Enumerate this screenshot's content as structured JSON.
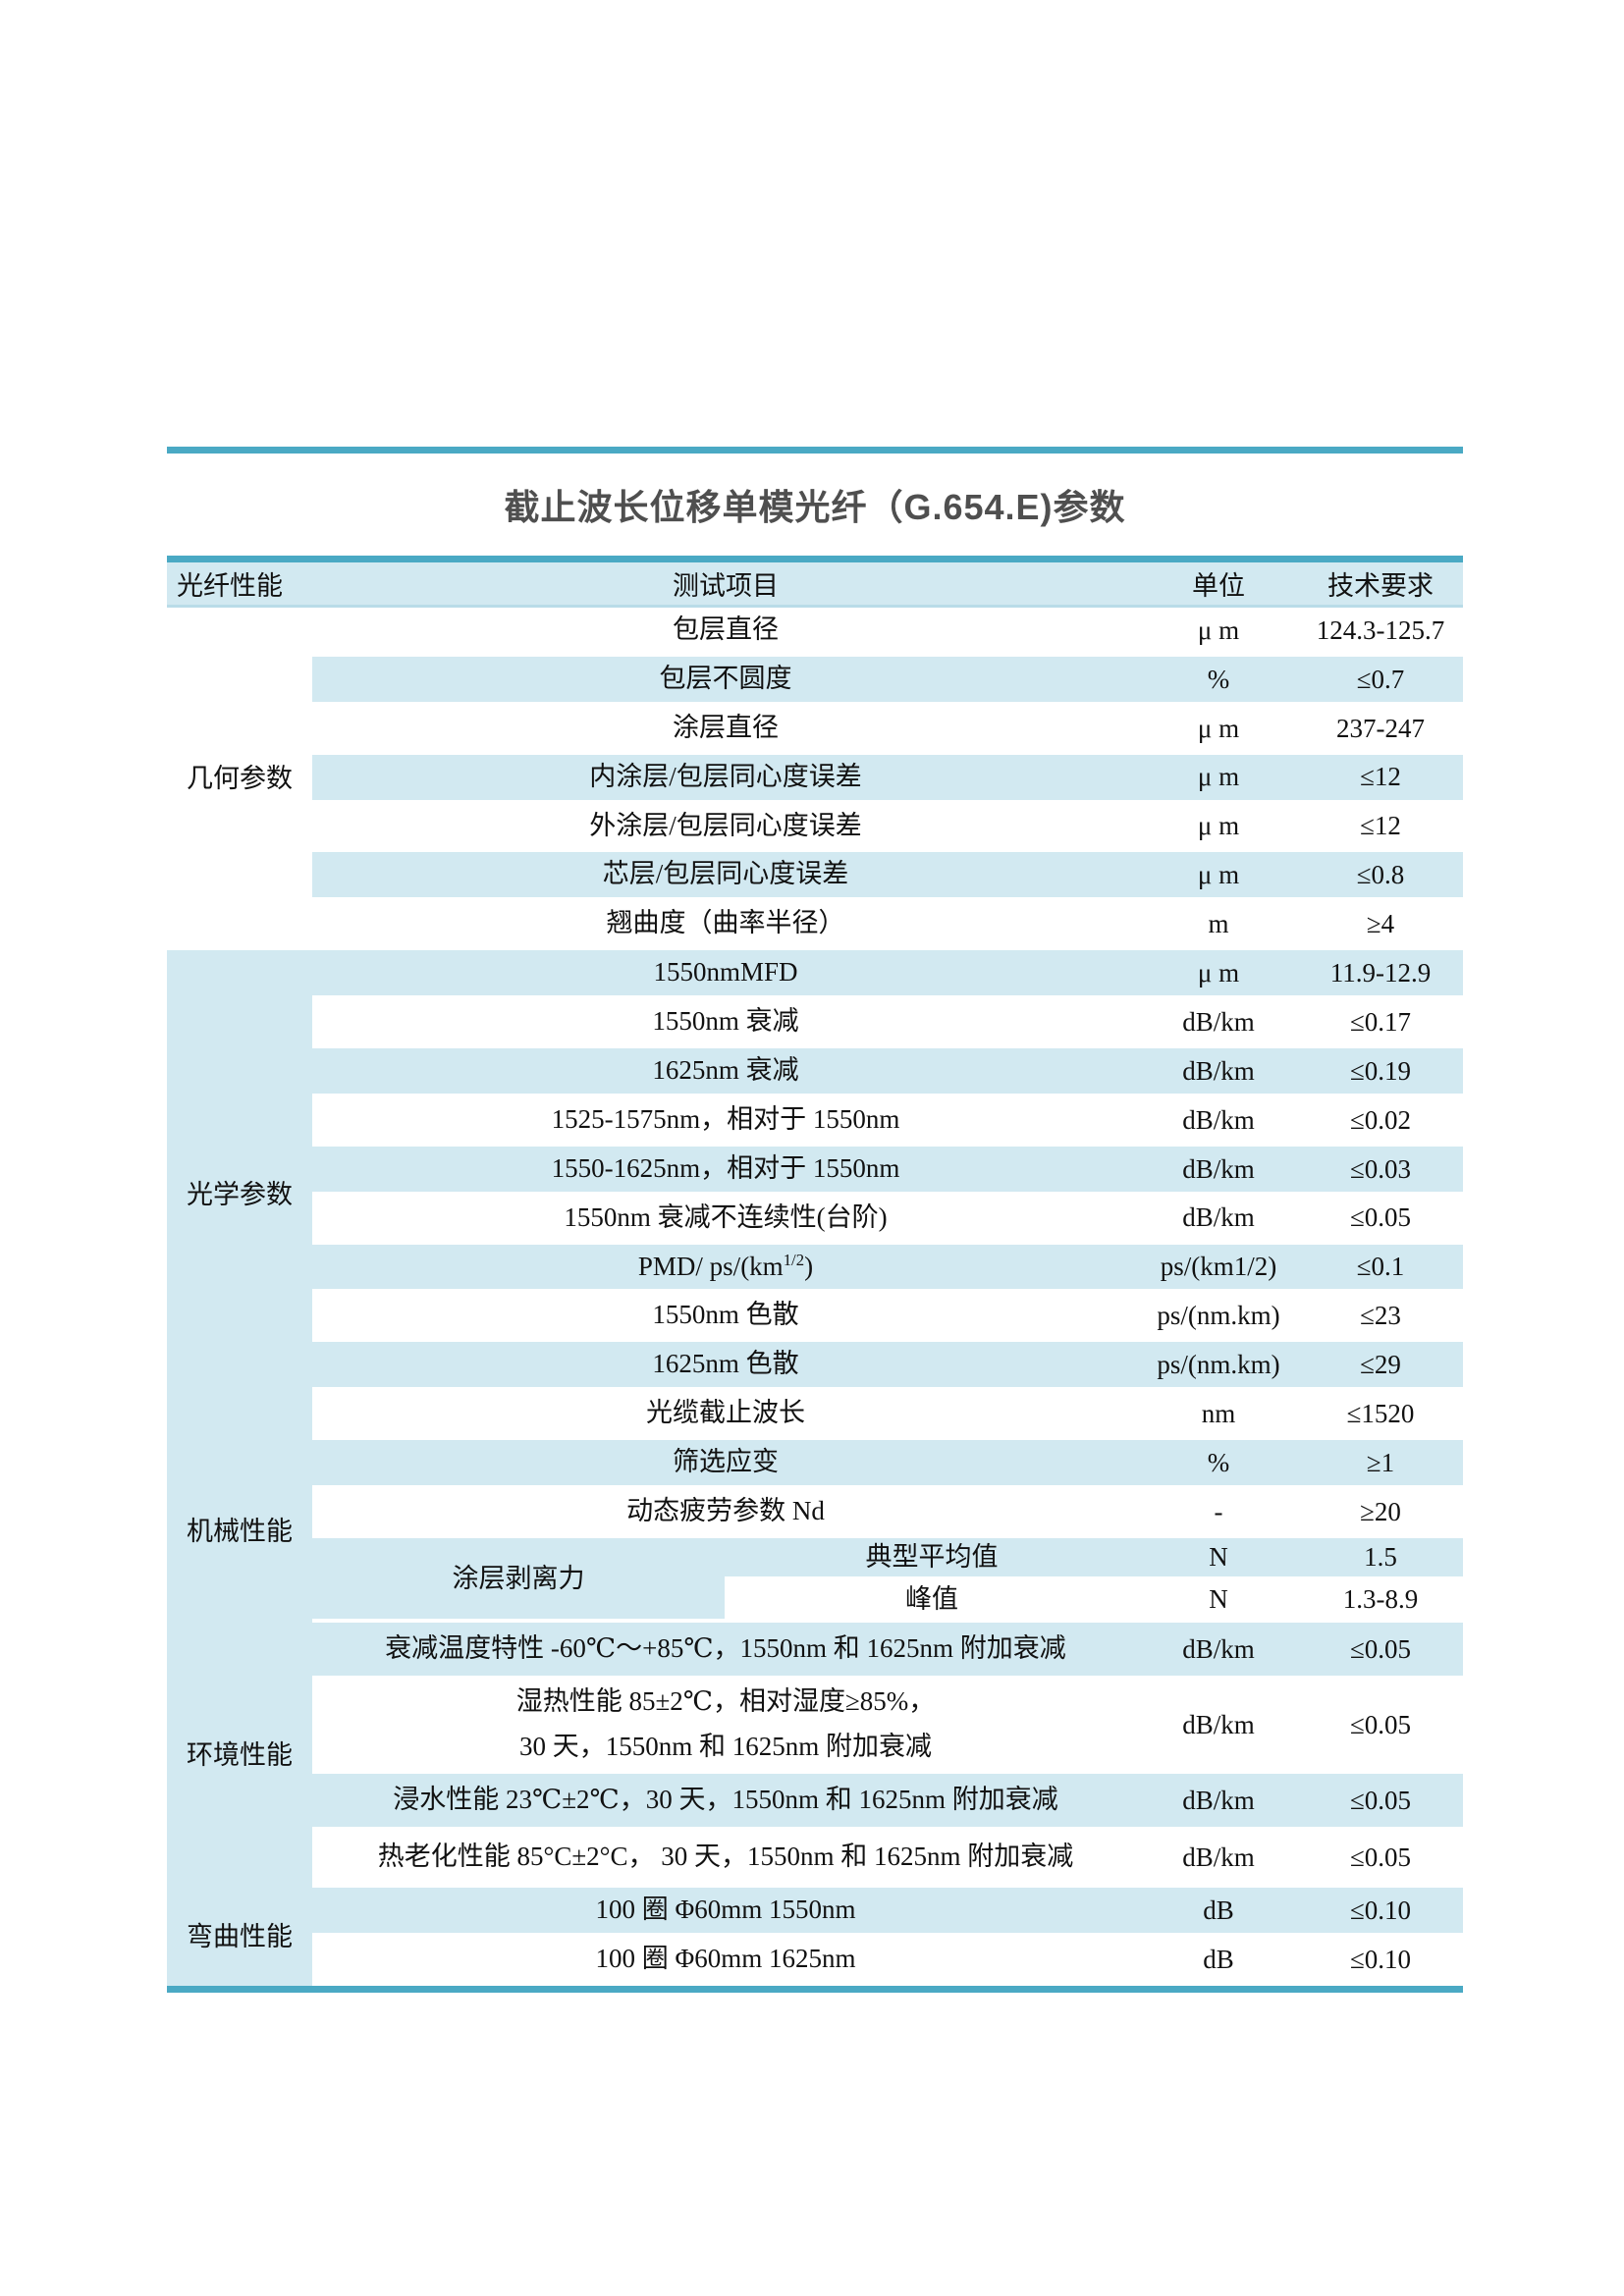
{
  "page": {
    "title": "截止波长位移单模光纤（G.654.E)参数"
  },
  "colors": {
    "accent_teal": "#4aa9c4",
    "row_blue": "#d2e9f1",
    "header_underline": "#b9dce8",
    "title_gray": "#4f4f4f"
  },
  "table": {
    "headers": {
      "category": "光纤性能",
      "item": "测试项目",
      "unit": "单位",
      "requirement": "技术要求"
    },
    "sections": [
      {
        "category": "几何参数",
        "category_bg": "white",
        "rows": [
          {
            "item": "包层直径",
            "unit": "μ m",
            "req": "124.3-125.7"
          },
          {
            "item": "包层不圆度",
            "unit": "%",
            "req": "≤0.7"
          },
          {
            "item": "涂层直径",
            "unit": "μ m",
            "req": "237-247"
          },
          {
            "item": "内涂层/包层同心度误差",
            "unit": "μ m",
            "req": "≤12"
          },
          {
            "item": "外涂层/包层同心度误差",
            "unit": "μ m",
            "req": "≤12"
          },
          {
            "item": "芯层/包层同心度误差",
            "unit": "μ m",
            "req": "≤0.8"
          },
          {
            "item": "翘曲度（曲率半径）",
            "unit": "m",
            "req": "≥4"
          }
        ]
      },
      {
        "category": "光学参数",
        "category_bg": "blue",
        "rows": [
          {
            "item": "1550nmMFD",
            "unit": "μ m",
            "req": "11.9-12.9"
          },
          {
            "item": "1550nm 衰减",
            "unit": "dB/km",
            "req": "≤0.17"
          },
          {
            "item": "1625nm 衰减",
            "unit": "dB/km",
            "req": "≤0.19"
          },
          {
            "item": "1525-1575nm，相对于 1550nm",
            "unit": "dB/km",
            "req": "≤0.02"
          },
          {
            "item": "1550-1625nm，相对于 1550nm",
            "unit": "dB/km",
            "req": "≤0.03"
          },
          {
            "item": "1550nm 衰减不连续性(台阶)",
            "unit": "dB/km",
            "req": "≤0.05"
          },
          {
            "item_parts": [
              {
                "t": "PMD/ ps/(km"
              },
              {
                "t": "1/2",
                "sup": true
              },
              {
                "t": ")"
              }
            ],
            "unit": "ps/(km1/2)",
            "req": "≤0.1"
          },
          {
            "item": "1550nm 色散",
            "unit": "ps/(nm.km)",
            "req": "≤23"
          },
          {
            "item": "1625nm 色散",
            "unit": "ps/(nm.km)",
            "req": "≤29"
          },
          {
            "item": "光缆截止波长",
            "unit": "nm",
            "req": "≤1520"
          }
        ]
      },
      {
        "category": "机械性能",
        "category_bg": "blue",
        "rows": [
          {
            "item": "筛选应变",
            "unit": "%",
            "req": "≥1"
          },
          {
            "item": "动态疲劳参数 Nd",
            "unit": "-",
            "req": "≥20"
          },
          {
            "split_item": "涂层剥离力",
            "subrows": [
              {
                "item": "典型平均值",
                "unit": "N",
                "req": "1.5"
              },
              {
                "item": "峰值",
                "unit": "N",
                "req": "1.3-8.9"
              }
            ]
          }
        ]
      },
      {
        "category": "环境性能",
        "category_bg": "blue",
        "rows": [
          {
            "item": "衰减温度特性  -60℃～+85℃，1550nm 和 1625nm 附加衰减",
            "unit": "dB/km",
            "req": "≤0.05"
          },
          {
            "item_lines": [
              "湿热性能  85±2℃，相对湿度≥85%，",
              "30 天，1550nm 和 1625nm 附加衰减"
            ],
            "unit": "dB/km",
            "req": "≤0.05"
          },
          {
            "item": "浸水性能  23℃±2℃，30 天，1550nm 和 1625nm 附加衰减",
            "unit": "dB/km",
            "req": "≤0.05"
          },
          {
            "item": "热老化性能 85°C±2°C， 30 天，1550nm 和 1625nm 附加衰减",
            "unit": "dB/km",
            "req": "≤0.05"
          }
        ]
      },
      {
        "category": "弯曲性能",
        "category_bg": "blue",
        "rows": [
          {
            "item": "100 圈 Φ60mm  1550nm",
            "unit": "dB",
            "req": "≤0.10"
          },
          {
            "item": "100 圈 Φ60mm 1625nm",
            "unit": "dB",
            "req": "≤0.10"
          }
        ]
      }
    ]
  }
}
